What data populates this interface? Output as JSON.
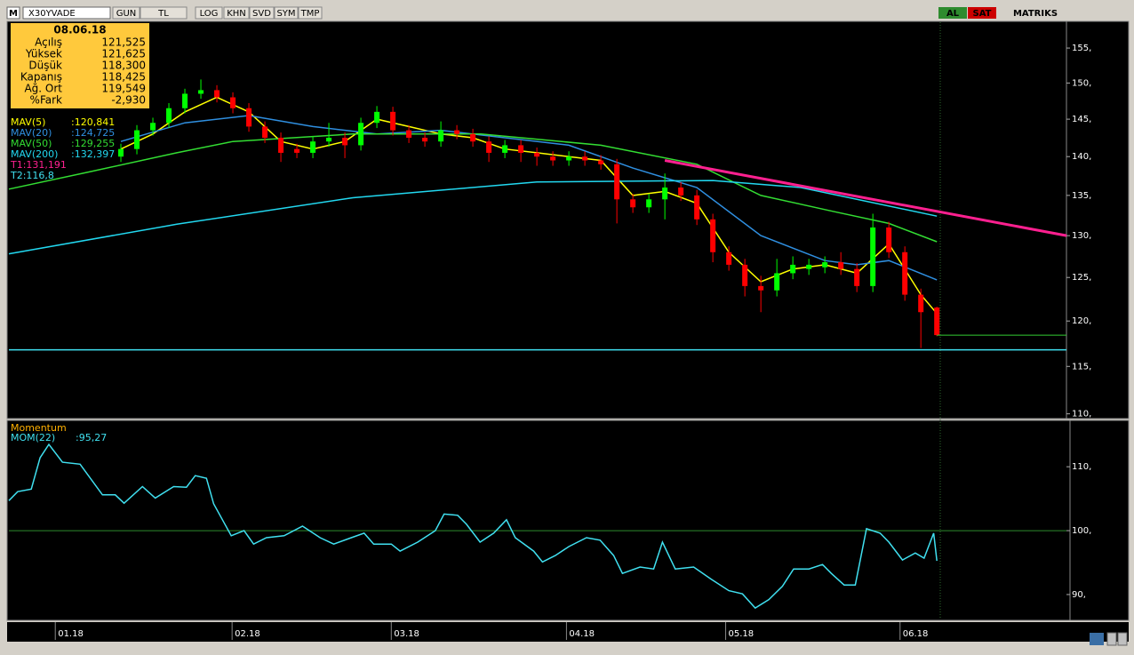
{
  "toolbar": {
    "logo": "M",
    "symbol": "X30YVADE",
    "buttons": [
      "GUN",
      "TL",
      "LOG",
      "KHN",
      "SVD",
      "SYM",
      "TMP"
    ],
    "buy": "AL",
    "sell": "SAT",
    "brand": "MATRIKS"
  },
  "info_box": {
    "date": "08.06.18",
    "rows": [
      [
        "Açılış",
        "121,525"
      ],
      [
        "Yüksek",
        "121,625"
      ],
      [
        "Düşük",
        "118,300"
      ],
      [
        "Kapanış",
        "118,425"
      ],
      [
        "Ağ. Ort",
        "119,549"
      ],
      [
        "%Fark",
        "-2,930"
      ]
    ]
  },
  "chart_data": [
    {
      "type": "candlestick",
      "log_scale": true,
      "xlim": [
        0,
        132.2
      ],
      "xticks": [
        {
          "value": 5.8,
          "label": "01.18"
        },
        {
          "value": 27.9,
          "label": "02.18"
        },
        {
          "value": 47.8,
          "label": "03.18"
        },
        {
          "value": 69.7,
          "label": "04.18"
        },
        {
          "value": 89.6,
          "label": "05.18"
        },
        {
          "value": 111.4,
          "label": "06.18"
        }
      ],
      "ylim": [
        109.6,
        158.8
      ],
      "yticks": [
        {
          "value": 155,
          "label": "155,"
        },
        {
          "value": 150,
          "label": "150,"
        },
        {
          "value": 145,
          "label": "145,"
        },
        {
          "value": 140,
          "label": "140,"
        },
        {
          "value": 135,
          "label": "135,"
        },
        {
          "value": 130,
          "label": "130,"
        },
        {
          "value": 125,
          "label": "125,"
        },
        {
          "value": 120,
          "label": "120,"
        },
        {
          "value": 115,
          "label": "115,"
        },
        {
          "value": 110,
          "label": "110,"
        }
      ],
      "up_color": "#00ff00",
      "down_color": "#ff0000",
      "last_price_color": "#33cc33",
      "x": [
        14,
        16,
        18,
        20,
        22,
        24,
        26,
        28,
        30,
        32,
        34,
        36,
        38,
        40,
        42,
        44,
        46,
        48,
        50,
        52,
        54,
        56,
        58,
        60,
        62,
        64,
        66,
        68,
        70,
        72,
        74,
        76,
        78,
        80,
        82,
        84,
        86,
        88,
        90,
        92,
        94,
        96,
        98,
        100,
        102,
        104,
        106,
        108,
        110,
        112,
        114,
        116
      ],
      "open": [
        140,
        141,
        143.5,
        144.5,
        146.5,
        148.5,
        149,
        148,
        146.5,
        144,
        142.5,
        141,
        140.5,
        142,
        142.5,
        141.5,
        144.5,
        146,
        143.5,
        142.5,
        142,
        143.5,
        143,
        142,
        140.5,
        141.5,
        140.5,
        140,
        139.5,
        140,
        139.5,
        139,
        134.5,
        133.5,
        134.5,
        136,
        135,
        132,
        128,
        126.5,
        124,
        123.5,
        125.5,
        126,
        126.2,
        126.8,
        126,
        124,
        131,
        128,
        123,
        121.525
      ],
      "high": [
        141.7,
        144.2,
        145.2,
        147.2,
        149.2,
        150.5,
        149.7,
        148.7,
        147.2,
        144.7,
        143.2,
        141.7,
        142.7,
        144.5,
        143.2,
        145.2,
        146.8,
        146.7,
        144.2,
        143.2,
        144.7,
        144.2,
        143.7,
        142.7,
        142.2,
        142.2,
        141.2,
        140.7,
        140.7,
        140.7,
        140.2,
        139.7,
        135.2,
        135.2,
        137.8,
        136.7,
        135.7,
        132.7,
        128.7,
        127.2,
        125.2,
        127.2,
        127.5,
        127.2,
        127.5,
        128,
        126.7,
        132.7,
        131.7,
        128.7,
        123.7,
        121.625
      ],
      "low": [
        139.3,
        140.3,
        142.8,
        143.8,
        145.8,
        147.8,
        147.3,
        145.8,
        143.3,
        141.8,
        139.3,
        139.8,
        139.8,
        141.3,
        139.8,
        140.8,
        143.8,
        142.8,
        141.8,
        141.3,
        141.3,
        142.3,
        141.3,
        139.3,
        139.8,
        139.3,
        138.8,
        138.8,
        138.8,
        138.8,
        138.3,
        131.5,
        132.8,
        132.8,
        132,
        134.3,
        131.3,
        126.8,
        125.8,
        122.8,
        121,
        122.8,
        124.8,
        125.3,
        125.5,
        125.3,
        123.3,
        123.3,
        127.3,
        122.3,
        117,
        118.3
      ],
      "close": [
        141,
        143.5,
        144.5,
        146.5,
        148.5,
        149,
        148,
        146.5,
        144,
        142.5,
        140.5,
        140.5,
        142,
        142.5,
        141.5,
        144.5,
        146,
        143.5,
        142.5,
        142,
        143.5,
        143,
        142,
        140.5,
        141.5,
        140.5,
        140,
        139.5,
        140,
        139.5,
        139,
        134.5,
        133.5,
        134.5,
        136,
        135,
        132,
        128,
        126.5,
        124,
        123.5,
        125.5,
        126.5,
        126.5,
        126.8,
        126,
        124,
        131,
        128,
        123,
        121,
        118.425
      ],
      "series": [
        {
          "name": "MAV(5)",
          "last_label": ":120,841",
          "color": "#ffff00",
          "x": [
            14,
            18,
            22,
            26,
            30,
            34,
            38,
            42,
            46,
            50,
            54,
            58,
            62,
            66,
            70,
            74,
            78,
            82,
            86,
            90,
            94,
            98,
            102,
            106,
            110,
            114,
            116
          ],
          "values": [
            141,
            143,
            146,
            148,
            146,
            142,
            141,
            142,
            145,
            144,
            143,
            142.5,
            141,
            140.5,
            140,
            139.5,
            135,
            135.5,
            134,
            128,
            124.5,
            126,
            126.5,
            125.5,
            129,
            123,
            120.841
          ]
        },
        {
          "name": "MAV(20)",
          "last_label": ":124,725",
          "color": "#2f8fe0",
          "x": [
            14,
            22,
            30,
            38,
            46,
            54,
            62,
            70,
            78,
            86,
            94,
            102,
            106,
            110,
            116
          ],
          "values": [
            142,
            144.5,
            145.5,
            144,
            143,
            143.5,
            142.5,
            141.5,
            138.5,
            136,
            130,
            127,
            126.5,
            127,
            124.725
          ]
        },
        {
          "name": "MAV(50)",
          "last_label": ":129,255",
          "color": "#33dd33",
          "x": [
            0,
            10,
            21,
            28,
            43,
            59,
            74,
            86,
            94,
            103,
            110,
            116
          ],
          "values": [
            135.8,
            138,
            140.5,
            142,
            143,
            143,
            141.5,
            139,
            135,
            133,
            131.5,
            129.255
          ]
        },
        {
          "name": "MAV(200)",
          "last_label": ":132,397",
          "color": "#22d8f0",
          "x": [
            0,
            21,
            43,
            66,
            88,
            99,
            116
          ],
          "values": [
            127.8,
            131.4,
            134.7,
            136.7,
            136.9,
            136,
            132.397
          ]
        }
      ],
      "trend_line": {
        "label": "T1:131,191",
        "color": "#ff2090",
        "x": [
          82,
          132.2
        ],
        "values": [
          139.5,
          130
        ]
      },
      "support_line": {
        "label": "T2:116,8",
        "color": "#40e0f0",
        "value": 116.8
      }
    },
    {
      "type": "line",
      "title": "Momentum",
      "xlim": [
        0,
        132.2
      ],
      "ylim": [
        86.1,
        116.7
      ],
      "yticks": [
        {
          "value": 110,
          "label": "110,"
        },
        {
          "value": 100,
          "label": "100,"
        },
        {
          "value": 90,
          "label": "90,"
        }
      ],
      "reference_line": 100,
      "reference_color": "#2e8b2e",
      "series": [
        {
          "name": "MOM(22)",
          "last_label": ":95,27",
          "color": "#40e0f0",
          "x": [
            0,
            1.1,
            2.8,
            3.9,
            5,
            6.7,
            8.9,
            11.7,
            13.3,
            14.4,
            16.7,
            18.3,
            20.6,
            22.2,
            23.3,
            24.7,
            25.6,
            27.8,
            29.4,
            30.6,
            32.2,
            34.4,
            36.7,
            38.9,
            40.6,
            42.8,
            44.4,
            45.6,
            47.8,
            48.9,
            51.1,
            53.3,
            54.4,
            56.1,
            57.2,
            58.9,
            60.6,
            62.2,
            63.3,
            65.6,
            66.7,
            68.3,
            70,
            72.2,
            73.9,
            75.6,
            76.7,
            78.9,
            80.6,
            81.7,
            83.3,
            85.6,
            87.8,
            90,
            91.7,
            93.3,
            95,
            96.7,
            98.1,
            100,
            101.7,
            102.8,
            104.4,
            105.8,
            107.2,
            108.9,
            110,
            111.7,
            113.3,
            114.4,
            115.6,
            116
          ],
          "values": [
            104.7,
            106.1,
            106.5,
            111.4,
            113.5,
            110.7,
            110.4,
            105.6,
            105.6,
            104.3,
            106.9,
            105.1,
            106.9,
            106.8,
            108.6,
            108.2,
            104.2,
            99.2,
            100,
            97.9,
            98.9,
            99.2,
            100.7,
            98.9,
            97.9,
            98.9,
            99.6,
            97.9,
            97.9,
            96.8,
            98.2,
            100,
            102.6,
            102.4,
            101,
            98.2,
            99.6,
            101.7,
            98.9,
            96.8,
            95.1,
            96.1,
            97.5,
            98.9,
            98.5,
            96.1,
            93.3,
            94.3,
            94,
            98.2,
            94,
            94.3,
            92.4,
            90.6,
            90.1,
            87.9,
            89.2,
            91.3,
            94,
            94,
            94.7,
            93.3,
            91.5,
            91.5,
            100.3,
            99.6,
            98.2,
            95.4,
            96.5,
            95.7,
            99.6,
            95.27
          ]
        }
      ]
    }
  ]
}
